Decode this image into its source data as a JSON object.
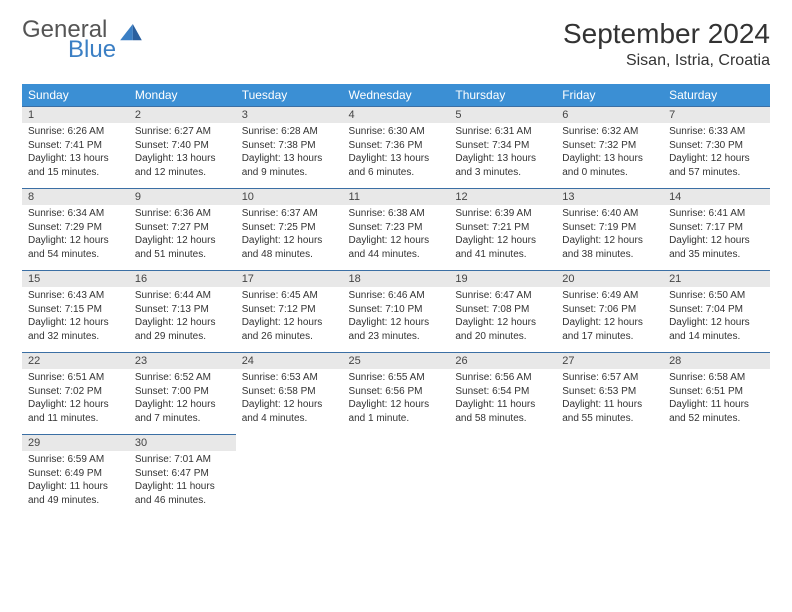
{
  "logo": {
    "word1": "General",
    "word2": "Blue",
    "accent_color": "#3b7fc4"
  },
  "title": "September 2024",
  "location": "Sisan, Istria, Croatia",
  "header_bg": "#3b8fd4",
  "daynum_bg": "#e8e8e8",
  "row_border": "#3b6fa4",
  "weekdays": [
    "Sunday",
    "Monday",
    "Tuesday",
    "Wednesday",
    "Thursday",
    "Friday",
    "Saturday"
  ],
  "weeks": [
    [
      {
        "n": "1",
        "sr": "Sunrise: 6:26 AM",
        "ss": "Sunset: 7:41 PM",
        "dl": "Daylight: 13 hours and 15 minutes."
      },
      {
        "n": "2",
        "sr": "Sunrise: 6:27 AM",
        "ss": "Sunset: 7:40 PM",
        "dl": "Daylight: 13 hours and 12 minutes."
      },
      {
        "n": "3",
        "sr": "Sunrise: 6:28 AM",
        "ss": "Sunset: 7:38 PM",
        "dl": "Daylight: 13 hours and 9 minutes."
      },
      {
        "n": "4",
        "sr": "Sunrise: 6:30 AM",
        "ss": "Sunset: 7:36 PM",
        "dl": "Daylight: 13 hours and 6 minutes."
      },
      {
        "n": "5",
        "sr": "Sunrise: 6:31 AM",
        "ss": "Sunset: 7:34 PM",
        "dl": "Daylight: 13 hours and 3 minutes."
      },
      {
        "n": "6",
        "sr": "Sunrise: 6:32 AM",
        "ss": "Sunset: 7:32 PM",
        "dl": "Daylight: 13 hours and 0 minutes."
      },
      {
        "n": "7",
        "sr": "Sunrise: 6:33 AM",
        "ss": "Sunset: 7:30 PM",
        "dl": "Daylight: 12 hours and 57 minutes."
      }
    ],
    [
      {
        "n": "8",
        "sr": "Sunrise: 6:34 AM",
        "ss": "Sunset: 7:29 PM",
        "dl": "Daylight: 12 hours and 54 minutes."
      },
      {
        "n": "9",
        "sr": "Sunrise: 6:36 AM",
        "ss": "Sunset: 7:27 PM",
        "dl": "Daylight: 12 hours and 51 minutes."
      },
      {
        "n": "10",
        "sr": "Sunrise: 6:37 AM",
        "ss": "Sunset: 7:25 PM",
        "dl": "Daylight: 12 hours and 48 minutes."
      },
      {
        "n": "11",
        "sr": "Sunrise: 6:38 AM",
        "ss": "Sunset: 7:23 PM",
        "dl": "Daylight: 12 hours and 44 minutes."
      },
      {
        "n": "12",
        "sr": "Sunrise: 6:39 AM",
        "ss": "Sunset: 7:21 PM",
        "dl": "Daylight: 12 hours and 41 minutes."
      },
      {
        "n": "13",
        "sr": "Sunrise: 6:40 AM",
        "ss": "Sunset: 7:19 PM",
        "dl": "Daylight: 12 hours and 38 minutes."
      },
      {
        "n": "14",
        "sr": "Sunrise: 6:41 AM",
        "ss": "Sunset: 7:17 PM",
        "dl": "Daylight: 12 hours and 35 minutes."
      }
    ],
    [
      {
        "n": "15",
        "sr": "Sunrise: 6:43 AM",
        "ss": "Sunset: 7:15 PM",
        "dl": "Daylight: 12 hours and 32 minutes."
      },
      {
        "n": "16",
        "sr": "Sunrise: 6:44 AM",
        "ss": "Sunset: 7:13 PM",
        "dl": "Daylight: 12 hours and 29 minutes."
      },
      {
        "n": "17",
        "sr": "Sunrise: 6:45 AM",
        "ss": "Sunset: 7:12 PM",
        "dl": "Daylight: 12 hours and 26 minutes."
      },
      {
        "n": "18",
        "sr": "Sunrise: 6:46 AM",
        "ss": "Sunset: 7:10 PM",
        "dl": "Daylight: 12 hours and 23 minutes."
      },
      {
        "n": "19",
        "sr": "Sunrise: 6:47 AM",
        "ss": "Sunset: 7:08 PM",
        "dl": "Daylight: 12 hours and 20 minutes."
      },
      {
        "n": "20",
        "sr": "Sunrise: 6:49 AM",
        "ss": "Sunset: 7:06 PM",
        "dl": "Daylight: 12 hours and 17 minutes."
      },
      {
        "n": "21",
        "sr": "Sunrise: 6:50 AM",
        "ss": "Sunset: 7:04 PM",
        "dl": "Daylight: 12 hours and 14 minutes."
      }
    ],
    [
      {
        "n": "22",
        "sr": "Sunrise: 6:51 AM",
        "ss": "Sunset: 7:02 PM",
        "dl": "Daylight: 12 hours and 11 minutes."
      },
      {
        "n": "23",
        "sr": "Sunrise: 6:52 AM",
        "ss": "Sunset: 7:00 PM",
        "dl": "Daylight: 12 hours and 7 minutes."
      },
      {
        "n": "24",
        "sr": "Sunrise: 6:53 AM",
        "ss": "Sunset: 6:58 PM",
        "dl": "Daylight: 12 hours and 4 minutes."
      },
      {
        "n": "25",
        "sr": "Sunrise: 6:55 AM",
        "ss": "Sunset: 6:56 PM",
        "dl": "Daylight: 12 hours and 1 minute."
      },
      {
        "n": "26",
        "sr": "Sunrise: 6:56 AM",
        "ss": "Sunset: 6:54 PM",
        "dl": "Daylight: 11 hours and 58 minutes."
      },
      {
        "n": "27",
        "sr": "Sunrise: 6:57 AM",
        "ss": "Sunset: 6:53 PM",
        "dl": "Daylight: 11 hours and 55 minutes."
      },
      {
        "n": "28",
        "sr": "Sunrise: 6:58 AM",
        "ss": "Sunset: 6:51 PM",
        "dl": "Daylight: 11 hours and 52 minutes."
      }
    ],
    [
      {
        "n": "29",
        "sr": "Sunrise: 6:59 AM",
        "ss": "Sunset: 6:49 PM",
        "dl": "Daylight: 11 hours and 49 minutes."
      },
      {
        "n": "30",
        "sr": "Sunrise: 7:01 AM",
        "ss": "Sunset: 6:47 PM",
        "dl": "Daylight: 11 hours and 46 minutes."
      },
      null,
      null,
      null,
      null,
      null
    ]
  ]
}
